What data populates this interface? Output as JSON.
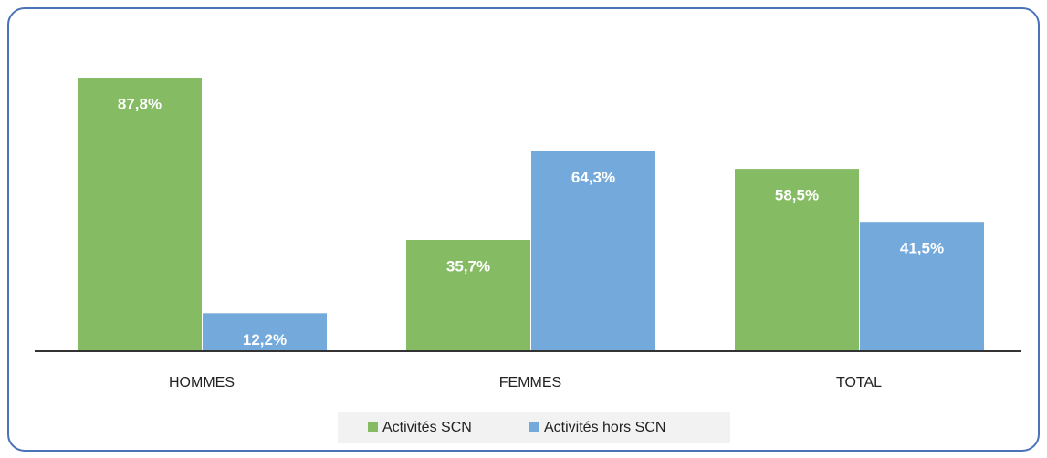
{
  "chart_data": {
    "type": "bar",
    "categories": [
      "HOMMES",
      "FEMMES",
      "TOTAL"
    ],
    "series": [
      {
        "name": "Activités SCN",
        "color": "#85bb63",
        "values": [
          87.8,
          35.7,
          58.5
        ],
        "value_labels": [
          "87,8%",
          "35,7%",
          "58,5%"
        ]
      },
      {
        "name": "Activités hors SCN",
        "color": "#74a9db",
        "values": [
          12.2,
          64.3,
          41.5
        ],
        "value_labels": [
          "12,2%",
          "64,3%",
          "41,5%"
        ]
      }
    ],
    "legend": "bottom"
  }
}
